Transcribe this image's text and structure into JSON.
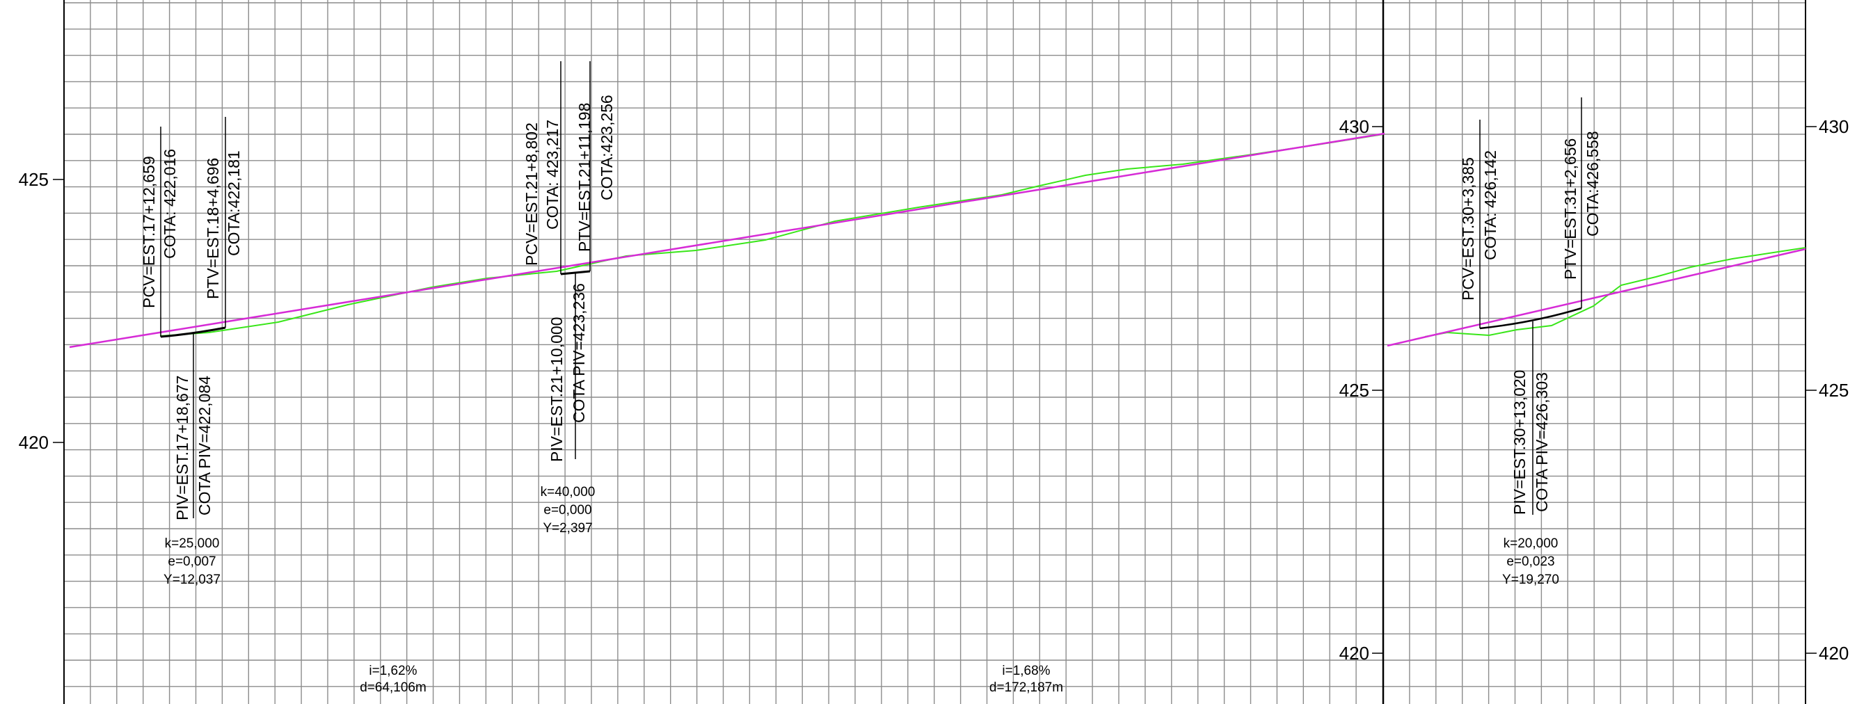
{
  "colors": {
    "grid": "#8c8c8c",
    "terrain": "#39e619",
    "grade": "#d62bd6",
    "curve": "#000000",
    "frame": "#000000"
  },
  "panels": [
    {
      "id": "left",
      "elevation_ticks": [
        "425",
        "420"
      ],
      "curves": [
        {
          "pcv": "PCV=EST.17+12,659",
          "pcv_cota": "COTA: 422,016",
          "ptv": "PTV=EST.18+4,696",
          "ptv_cota": "COTA:422,181",
          "piv": "PIV=EST.17+18,677",
          "piv_cota": "COTA PIV=422,084",
          "k": "k=25,000",
          "e": "e=0,007",
          "y": "Y=12,037"
        },
        {
          "pcv": "PCV=EST.21+8,802",
          "pcv_cota": "COTA: 423,217",
          "ptv": "PTV=EST.21+11,198",
          "ptv_cota": "COTA:423,256",
          "piv": "PIV=EST.21+10,000",
          "piv_cota": "COTA PIV=423,236",
          "k": "k=40,000",
          "e": "e=0,000",
          "y": "Y=2,397"
        }
      ],
      "grades": [
        {
          "i": "i=1,62%",
          "d": "d=64,106m"
        },
        {
          "i": "i=1,68%",
          "d": "d=172,187m"
        }
      ]
    },
    {
      "id": "right",
      "elevation_ticks_left": [
        "430",
        "425",
        "420"
      ],
      "elevation_ticks_right": [
        "430",
        "425",
        "420"
      ],
      "curves": [
        {
          "pcv": "PCV=EST.30+3,385",
          "pcv_cota": "COTA: 426,142",
          "ptv": "PTV=EST.31+2,656",
          "ptv_cota": "COTA:426,558",
          "piv": "PIV=EST.30+13,020",
          "piv_cota": "COTA PIV=426,303",
          "k": "k=20,000",
          "e": "e=0,023",
          "y": "Y=19,270"
        }
      ]
    }
  ]
}
